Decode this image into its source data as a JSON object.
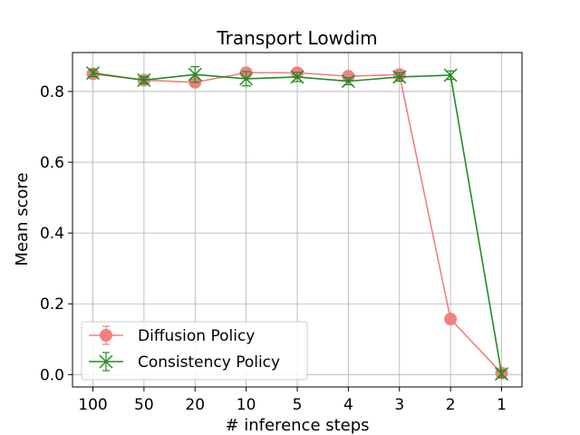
{
  "chart_data": {
    "type": "line",
    "title": "Transport Lowdim",
    "xlabel": "# inference steps",
    "ylabel": "Mean score",
    "categories": [
      "100",
      "50",
      "20",
      "10",
      "5",
      "4",
      "3",
      "2",
      "1"
    ],
    "ylim": [
      -0.035,
      0.91
    ],
    "yticks": [
      0.0,
      0.2,
      0.4,
      0.6,
      0.8
    ],
    "ytick_labels": [
      "0.0",
      "0.2",
      "0.4",
      "0.6",
      "0.8"
    ],
    "grid": true,
    "legend": "lower-left",
    "series": [
      {
        "name": "Diffusion Policy",
        "color": "#f08080",
        "marker": "circle",
        "values": [
          0.85,
          0.832,
          0.826,
          0.853,
          0.853,
          0.843,
          0.848,
          0.157,
          0.004
        ],
        "errors": [
          0.005,
          0.004,
          0.004,
          0.004,
          0.004,
          0.004,
          0.004,
          0.005,
          0.004
        ]
      },
      {
        "name": "Consistency Policy",
        "color": "#228b22",
        "marker": "x",
        "values": [
          0.852,
          0.832,
          0.848,
          0.836,
          0.841,
          0.829,
          0.841,
          0.846,
          0.002
        ],
        "errors": [
          0.01,
          0.01,
          0.022,
          0.02,
          0.013,
          0.01,
          0.012,
          0.012,
          0.01
        ]
      }
    ]
  }
}
